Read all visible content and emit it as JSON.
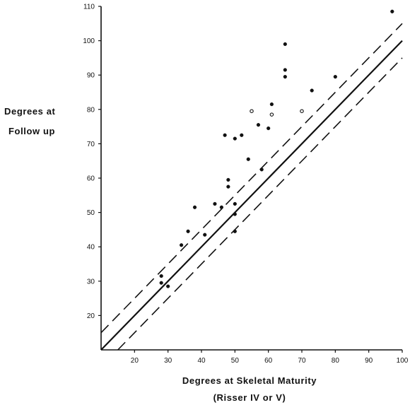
{
  "chart_data": {
    "type": "scatter",
    "title": "",
    "ylabel_lines": [
      "Degrees at",
      "Follow up"
    ],
    "xlabel_lines": [
      "Degrees at Skeletal Maturity",
      "(Risser IV or V)"
    ],
    "xlim": [
      10,
      100
    ],
    "ylim": [
      10,
      110
    ],
    "x_ticks": [
      20,
      30,
      40,
      50,
      60,
      70,
      80,
      90,
      100
    ],
    "y_ticks": [
      20,
      30,
      40,
      50,
      60,
      70,
      80,
      90,
      100,
      110
    ],
    "grid": false,
    "legend": "none",
    "reference_lines": [
      {
        "style": "solid",
        "slope": 1,
        "intercept": 0
      },
      {
        "style": "dashed",
        "slope": 1,
        "intercept": 5
      },
      {
        "style": "dashed",
        "slope": 1,
        "intercept": -5
      }
    ],
    "points": [
      {
        "x": 28,
        "y": 31.5
      },
      {
        "x": 28,
        "y": 29.5
      },
      {
        "x": 30,
        "y": 28.5
      },
      {
        "x": 34,
        "y": 40.5
      },
      {
        "x": 36,
        "y": 44.5
      },
      {
        "x": 38,
        "y": 51.5
      },
      {
        "x": 41,
        "y": 43.5
      },
      {
        "x": 44,
        "y": 52.5
      },
      {
        "x": 46,
        "y": 51.5
      },
      {
        "x": 47,
        "y": 72.5
      },
      {
        "x": 48,
        "y": 59.5
      },
      {
        "x": 48,
        "y": 57.5
      },
      {
        "x": 50,
        "y": 71.5
      },
      {
        "x": 50,
        "y": 52.5
      },
      {
        "x": 50,
        "y": 49.5
      },
      {
        "x": 50,
        "y": 44.5
      },
      {
        "x": 52,
        "y": 72.5
      },
      {
        "x": 54,
        "y": 65.5
      },
      {
        "x": 55,
        "y": 79.5,
        "marker": "open"
      },
      {
        "x": 57,
        "y": 75.5
      },
      {
        "x": 58,
        "y": 62.5
      },
      {
        "x": 60,
        "y": 74.5
      },
      {
        "x": 61,
        "y": 81.5
      },
      {
        "x": 61,
        "y": 78.5,
        "marker": "open"
      },
      {
        "x": 65,
        "y": 99
      },
      {
        "x": 65,
        "y": 91.5
      },
      {
        "x": 65,
        "y": 89.5
      },
      {
        "x": 70,
        "y": 79.5,
        "marker": "open"
      },
      {
        "x": 73,
        "y": 85.5
      },
      {
        "x": 80,
        "y": 89.5
      },
      {
        "x": 97,
        "y": 108.5
      }
    ]
  }
}
